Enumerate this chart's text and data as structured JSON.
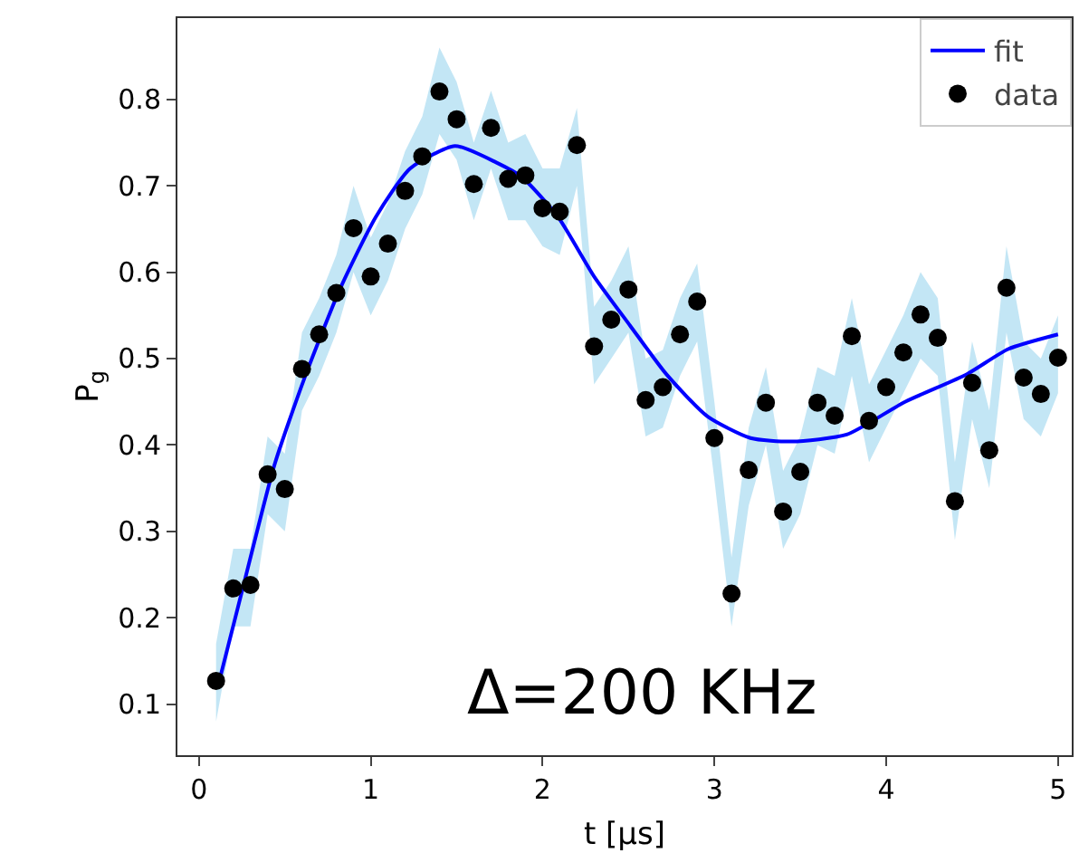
{
  "chart_data": {
    "type": "scatter",
    "xlabel": "t [μs]",
    "ylabel": "P$_{g}$",
    "annotations": [
      "Δ=200 KHz"
    ],
    "xlim": [
      -0.125,
      5.08
    ],
    "ylim": [
      0.041,
      0.894
    ],
    "xticks": [
      0,
      1,
      2,
      3,
      4,
      5
    ],
    "yticks": [
      0.1,
      0.2,
      0.3,
      0.4,
      0.5,
      0.6,
      0.7,
      0.8
    ],
    "grid": false,
    "legend": "top right",
    "series": [
      {
        "name": "fit",
        "type": "line",
        "color": "#0000ff",
        "line_style": "solid",
        "marker": "none",
        "x": [
          0.115,
          0.26,
          0.44,
          0.61,
          0.82,
          1.03,
          1.23,
          1.49,
          1.73,
          1.88,
          2.09,
          2.3,
          2.51,
          2.72,
          2.96,
          3.21,
          3.45,
          3.77,
          4.11,
          4.47,
          4.71,
          5.0
        ],
        "values": [
          0.124,
          0.238,
          0.377,
          0.475,
          0.58,
          0.664,
          0.72,
          0.746,
          0.727,
          0.71,
          0.664,
          0.595,
          0.538,
          0.482,
          0.433,
          0.408,
          0.404,
          0.412,
          0.45,
          0.482,
          0.511,
          0.528
        ]
      },
      {
        "name": "data",
        "color": "#000000",
        "marker": "circle",
        "x": [
          0.1,
          0.2,
          0.3,
          0.4,
          0.5,
          0.6,
          0.7,
          0.8,
          0.9,
          1.0,
          1.1,
          1.2,
          1.3,
          1.4,
          1.5,
          1.6,
          1.7,
          1.8,
          1.9,
          2.0,
          2.1,
          2.2,
          2.3,
          2.4,
          2.5,
          2.6,
          2.7,
          2.8,
          2.9,
          3.0,
          3.1,
          3.2,
          3.3,
          3.4,
          3.5,
          3.6,
          3.7,
          3.8,
          3.9,
          4.0,
          4.1,
          4.2,
          4.3,
          4.4,
          4.5,
          4.6,
          4.7,
          4.8,
          4.9,
          5.0
        ],
        "values": [
          0.127,
          0.234,
          0.238,
          0.366,
          0.349,
          0.488,
          0.528,
          0.576,
          0.651,
          0.595,
          0.633,
          0.694,
          0.734,
          0.809,
          0.777,
          0.702,
          0.767,
          0.708,
          0.712,
          0.674,
          0.67,
          0.747,
          0.514,
          0.545,
          0.58,
          0.452,
          0.467,
          0.528,
          0.566,
          0.408,
          0.228,
          0.371,
          0.449,
          0.323,
          0.369,
          0.449,
          0.434,
          0.526,
          0.428,
          0.467,
          0.507,
          0.551,
          0.524,
          0.335,
          0.472,
          0.394,
          0.582,
          0.478,
          0.459,
          0.501
        ],
        "lower": [
          0.08,
          0.19,
          0.19,
          0.32,
          0.3,
          0.44,
          0.48,
          0.53,
          0.6,
          0.55,
          0.59,
          0.65,
          0.69,
          0.76,
          0.73,
          0.66,
          0.72,
          0.66,
          0.66,
          0.63,
          0.62,
          0.7,
          0.47,
          0.5,
          0.53,
          0.41,
          0.42,
          0.48,
          0.52,
          0.36,
          0.19,
          0.33,
          0.4,
          0.28,
          0.32,
          0.4,
          0.39,
          0.48,
          0.38,
          0.42,
          0.46,
          0.5,
          0.48,
          0.29,
          0.43,
          0.35,
          0.53,
          0.43,
          0.41,
          0.46
        ],
        "upper": [
          0.17,
          0.28,
          0.28,
          0.41,
          0.39,
          0.53,
          0.57,
          0.62,
          0.7,
          0.64,
          0.68,
          0.74,
          0.78,
          0.86,
          0.82,
          0.75,
          0.81,
          0.75,
          0.76,
          0.72,
          0.72,
          0.79,
          0.56,
          0.59,
          0.63,
          0.5,
          0.51,
          0.57,
          0.61,
          0.45,
          0.27,
          0.42,
          0.49,
          0.37,
          0.41,
          0.49,
          0.48,
          0.57,
          0.47,
          0.51,
          0.55,
          0.6,
          0.57,
          0.38,
          0.52,
          0.44,
          0.63,
          0.52,
          0.5,
          0.55
        ]
      }
    ]
  }
}
